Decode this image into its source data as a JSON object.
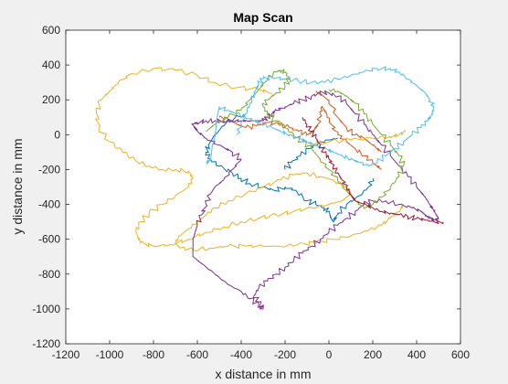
{
  "chart_data": {
    "type": "line",
    "title": "Map Scan",
    "xlabel": "x distance in mm",
    "ylabel": "y distance in mm",
    "xlim": [
      -1200,
      600
    ],
    "ylim": [
      -1200,
      600
    ],
    "xticks": [
      -1200,
      -1000,
      -800,
      -600,
      -400,
      -200,
      0,
      200,
      400,
      600
    ],
    "yticks": [
      -1200,
      -1000,
      -800,
      -600,
      -400,
      -200,
      0,
      200,
      400,
      600
    ],
    "xtick_labels": [
      "-1200",
      "-1000",
      "-800",
      "-600",
      "-400",
      "-200",
      "0",
      "200",
      "400",
      "600"
    ],
    "ytick_labels": [
      "-1200",
      "-1000",
      "-800",
      "-600",
      "-400",
      "-200",
      "0",
      "200",
      "400",
      "600"
    ],
    "grid": false,
    "legend": "none",
    "series": [
      {
        "color": "#0072bd",
        "x": [
          -380,
          -460,
          -520,
          -550,
          -560,
          -540,
          -500,
          -440,
          -400,
          -360,
          -300,
          -250,
          -200,
          -150,
          -100,
          -60,
          -20,
          0,
          10,
          20,
          40,
          80,
          140,
          180,
          200
        ],
        "y": [
          120,
          80,
          0,
          -60,
          -100,
          -140,
          -180,
          -220,
          -250,
          -280,
          -300,
          -320,
          -300,
          -320,
          -380,
          -400,
          -420,
          -440,
          -480,
          -500,
          -450,
          -400,
          -350,
          -300,
          -250
        ],
        "x2": [
          -200,
          -170,
          -130,
          -90,
          -50,
          0,
          40
        ],
        "y2": [
          -200,
          -160,
          -120,
          -80,
          -50,
          -30,
          -20
        ]
      },
      {
        "color": "#d95319",
        "x": [
          -500,
          -460,
          -420,
          -380,
          -330,
          -280,
          -230,
          -180,
          -140,
          -100,
          -70,
          -50,
          -40,
          -30,
          -10,
          10,
          40,
          80,
          120,
          160,
          200,
          240
        ],
        "y": [
          100,
          90,
          60,
          40,
          50,
          70,
          60,
          40,
          20,
          0,
          20,
          60,
          120,
          160,
          120,
          60,
          0,
          -40,
          -80,
          -120,
          -160,
          -200
        ],
        "x2": [
          -60,
          0,
          40,
          80,
          120,
          160,
          200,
          240
        ],
        "y2": [
          250,
          200,
          100,
          40,
          0,
          -20,
          -60,
          -100
        ]
      },
      {
        "color": "#edb120",
        "x": [
          -260,
          -320,
          -420,
          -520,
          -600,
          -700,
          -800,
          -900,
          -960,
          -1000,
          -1040,
          -1060,
          -1050,
          -1000,
          -940,
          -880,
          -820,
          -760,
          -700,
          -640,
          -620,
          -640,
          -700,
          -760,
          -820,
          -860,
          -880,
          -860,
          -800,
          -720,
          -640,
          -560,
          -480,
          -400,
          -320,
          -240,
          -160,
          -80,
          0,
          60,
          100,
          80,
          20,
          -40,
          -100,
          -160,
          -220,
          -300,
          -380,
          -460,
          -520,
          -560,
          -600,
          -640,
          -680,
          -700,
          -680,
          -620,
          -540,
          -460,
          -380,
          -300,
          -220,
          -140,
          -60,
          20,
          100,
          180,
          240,
          280,
          320,
          340
        ],
        "y": [
          240,
          260,
          270,
          300,
          340,
          370,
          380,
          350,
          300,
          250,
          200,
          120,
          40,
          -40,
          -100,
          -150,
          -180,
          -200,
          -200,
          -210,
          -250,
          -300,
          -350,
          -400,
          -450,
          -500,
          -560,
          -620,
          -640,
          -630,
          -600,
          -560,
          -530,
          -500,
          -480,
          -460,
          -440,
          -420,
          -400,
          -380,
          -340,
          -300,
          -260,
          -240,
          -220,
          -230,
          -260,
          -300,
          -340,
          -380,
          -420,
          -460,
          -500,
          -540,
          -580,
          -620,
          -650,
          -660,
          -650,
          -640,
          -640,
          -640,
          -640,
          -630,
          -620,
          -600,
          -580,
          -550,
          -520,
          -480,
          -440,
          -400
        ],
        "x2": [
          -100,
          0,
          100,
          200,
          280,
          320,
          350
        ],
        "y2": [
          -60,
          -40,
          -30,
          -20,
          -10,
          0,
          20
        ]
      },
      {
        "color": "#7e2f8e",
        "x": [
          -620,
          -600,
          -560,
          -500,
          -440,
          -400,
          -440,
          -480,
          -520,
          -540,
          -560,
          -580,
          -600,
          -620,
          -620,
          -580,
          -520,
          -460,
          -400,
          -360,
          -320,
          -300,
          -320,
          -340,
          -320,
          -280,
          -240,
          -200,
          -160,
          -120,
          -80,
          -40,
          0,
          40,
          80,
          120,
          160,
          200,
          260,
          320,
          380,
          420,
          440,
          460,
          480,
          500,
          480,
          460,
          440,
          400,
          360,
          320,
          280,
          240,
          200,
          160,
          120,
          80,
          40,
          0,
          -40,
          -80,
          -120,
          -160,
          -200,
          -240,
          -260,
          -280,
          -300,
          -320,
          -360,
          -400,
          -440,
          -480,
          -520,
          -560,
          -600,
          -620
        ],
        "y": [
          60,
          20,
          -20,
          -60,
          -100,
          -140,
          -200,
          -260,
          -300,
          -340,
          -400,
          -460,
          -520,
          -600,
          -700,
          -740,
          -800,
          -860,
          -900,
          -940,
          -980,
          -1000,
          -960,
          -920,
          -880,
          -840,
          -800,
          -760,
          -720,
          -680,
          -640,
          -600,
          -560,
          -520,
          -480,
          -440,
          -400,
          -380,
          -380,
          -400,
          -420,
          -440,
          -460,
          -480,
          -490,
          -480,
          -440,
          -400,
          -360,
          -300,
          -240,
          -180,
          -120,
          -60,
          0,
          60,
          120,
          180,
          220,
          240,
          240,
          220,
          200,
          180,
          160,
          140,
          120,
          100,
          80,
          80,
          80,
          80,
          80,
          80,
          80,
          80,
          70,
          60
        ]
      },
      {
        "color": "#77ac30",
        "x": [
          -560,
          -520,
          -460,
          -400,
          -360,
          -320,
          -280,
          -240,
          -220,
          -200,
          -180,
          -200,
          -240,
          -280,
          -300,
          -280,
          -240,
          -200,
          -160,
          -120,
          -80,
          -40,
          0,
          40,
          80,
          120,
          160,
          200,
          240,
          280,
          320,
          340,
          320,
          280,
          240,
          200,
          160,
          120,
          80,
          40,
          0
        ],
        "y": [
          20,
          60,
          100,
          140,
          200,
          260,
          320,
          360,
          370,
          360,
          320,
          280,
          240,
          200,
          160,
          120,
          80,
          40,
          0,
          -40,
          -80,
          -140,
          -200,
          -260,
          -320,
          -380,
          -420,
          -400,
          -360,
          -300,
          -240,
          -180,
          -120,
          -60,
          0,
          60,
          120,
          180,
          220,
          250,
          260
        ]
      },
      {
        "color": "#4dbeee",
        "x": [
          -420,
          -400,
          -380,
          -360,
          -340,
          -320,
          -300,
          -260,
          -200,
          -140,
          -80,
          -20,
          40,
          100,
          160,
          220,
          280,
          320,
          360,
          400,
          440,
          460,
          480,
          470,
          450,
          420,
          380,
          340,
          300,
          260,
          220,
          180,
          140,
          100,
          60,
          20,
          -20,
          -60,
          -100,
          -140,
          -180,
          -220,
          -260,
          -300,
          -340,
          -380,
          -420,
          -460,
          -500,
          -540,
          -560
        ],
        "y": [
          0,
          60,
          120,
          180,
          240,
          290,
          320,
          330,
          320,
          310,
          300,
          300,
          320,
          340,
          360,
          380,
          380,
          360,
          320,
          280,
          240,
          200,
          160,
          120,
          80,
          40,
          0,
          -40,
          -80,
          -120,
          -160,
          -180,
          -160,
          -140,
          -120,
          -100,
          -80,
          -60,
          -40,
          -20,
          0,
          20,
          40,
          60,
          80,
          100,
          120,
          140,
          160,
          -150,
          -160
        ]
      },
      {
        "color": "#a2142f",
        "x": [
          -120,
          -100,
          -80,
          -60,
          -40,
          -20,
          0,
          20,
          40,
          60,
          80,
          100,
          120,
          160,
          200,
          240,
          280,
          320,
          360,
          400,
          440,
          480,
          520
        ],
        "y": [
          100,
          60,
          20,
          -20,
          -60,
          -100,
          -140,
          -180,
          -220,
          -260,
          -300,
          -340,
          -380,
          -400,
          -420,
          -440,
          -450,
          -460,
          -470,
          -480,
          -490,
          -500,
          -500
        ]
      }
    ]
  }
}
